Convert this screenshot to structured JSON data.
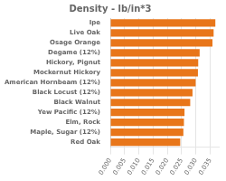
{
  "chart_data": {
    "type": "bar",
    "orientation": "horizontal",
    "title": "Density - lb/in*3",
    "categories": [
      "Ipe",
      "Live Oak",
      "Osage Orange",
      "Degame (12%)",
      "Hickory, Pignut",
      "Mockernut Hickory",
      "American Hornbeam (12%)",
      "Black Locust (12%)",
      "Black Walnut",
      "Yew Pacific (12%)",
      "Elm, Rock",
      "Maple, Sugar (12%)",
      "Red Oak"
    ],
    "values": [
      0.0368,
      0.0362,
      0.0358,
      0.0313,
      0.0308,
      0.0307,
      0.0299,
      0.0288,
      0.028,
      0.026,
      0.0258,
      0.0256,
      0.0245
    ],
    "color": "#E8761A",
    "xlim": [
      0.0,
      0.038
    ],
    "xticks": [
      {
        "value": 0.0,
        "label": "0.000"
      },
      0.005,
      {
        "value": 0.01,
        "label": "0.010"
      },
      0.015,
      {
        "value": 0.02,
        "label": "0.020"
      },
      0.025,
      {
        "value": 0.03,
        "label": "0.030"
      },
      0.035
    ],
    "grid": true
  }
}
